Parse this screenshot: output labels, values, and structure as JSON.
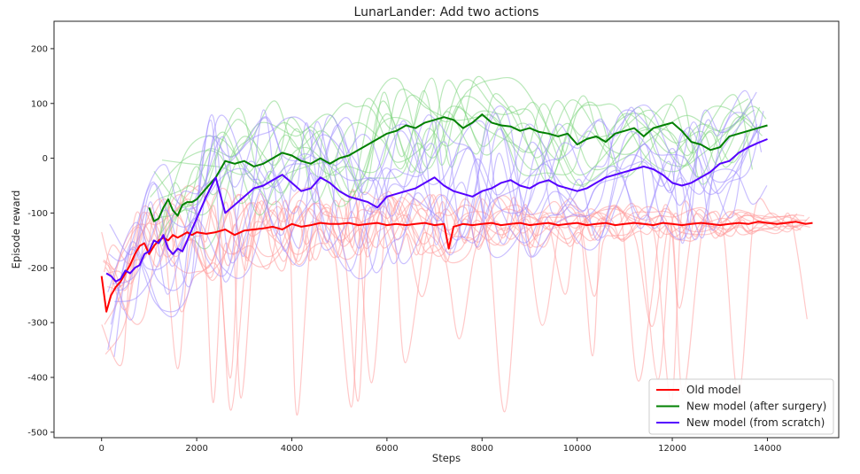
{
  "chart_data": {
    "type": "line",
    "title": "LunarLander: Add two actions",
    "xlabel": "Steps",
    "ylabel": "Episode reward",
    "xlim": [
      -1000,
      15500
    ],
    "ylim": [
      -510,
      250
    ],
    "xticks": [
      0,
      2000,
      4000,
      6000,
      8000,
      10000,
      12000,
      14000
    ],
    "yticks": [
      -500,
      -400,
      -300,
      -200,
      -100,
      0,
      100,
      200
    ],
    "grid": false,
    "legend_position": "bottom-right",
    "colors": {
      "old": "#ff0000",
      "surgery": "#008000",
      "scratch": "#5500ff",
      "old_faint": "#ff9a9a",
      "surgery_faint": "#7fd67f",
      "scratch_faint": "#9f8cff"
    },
    "series": [
      {
        "name": "Old model",
        "color": "#ff0000",
        "x": [
          0,
          100,
          200,
          300,
          400,
          500,
          600,
          700,
          800,
          900,
          1000,
          1100,
          1200,
          1300,
          1400,
          1500,
          1600,
          1700,
          1800,
          1900,
          2000,
          2200,
          2400,
          2600,
          2800,
          3000,
          3200,
          3400,
          3600,
          3800,
          4000,
          4200,
          4400,
          4600,
          4800,
          5000,
          5200,
          5400,
          5600,
          5800,
          6000,
          6200,
          6400,
          6600,
          6800,
          7000,
          7200,
          7300,
          7400,
          7600,
          7800,
          8000,
          8200,
          8400,
          8600,
          8800,
          9000,
          9200,
          9400,
          9600,
          9800,
          10000,
          10200,
          10400,
          10600,
          10800,
          11000,
          11200,
          11400,
          11600,
          11800,
          12000,
          12200,
          12400,
          12600,
          12800,
          13000,
          13200,
          13400,
          13600,
          13800,
          14000,
          14200,
          14400,
          14600,
          14800,
          14950
        ],
        "values": [
          -215,
          -280,
          -250,
          -235,
          -225,
          -210,
          -195,
          -175,
          -160,
          -155,
          -175,
          -160,
          -150,
          -145,
          -150,
          -140,
          -145,
          -140,
          -135,
          -140,
          -135,
          -138,
          -135,
          -130,
          -140,
          -132,
          -130,
          -128,
          -125,
          -130,
          -120,
          -125,
          -122,
          -118,
          -120,
          -120,
          -118,
          -122,
          -120,
          -118,
          -122,
          -120,
          -122,
          -120,
          -118,
          -122,
          -120,
          -165,
          -125,
          -120,
          -122,
          -120,
          -118,
          -122,
          -120,
          -118,
          -122,
          -120,
          -118,
          -122,
          -120,
          -118,
          -122,
          -120,
          -118,
          -122,
          -120,
          -118,
          -120,
          -122,
          -118,
          -120,
          -122,
          -120,
          -118,
          -120,
          -122,
          -120,
          -118,
          -120,
          -116,
          -118,
          -120,
          -118,
          -116,
          -120,
          -118
        ]
      },
      {
        "name": "New model (after surgery)",
        "color": "#008000",
        "x": [
          1000,
          1100,
          1200,
          1300,
          1400,
          1500,
          1600,
          1700,
          1800,
          1900,
          2000,
          2200,
          2400,
          2600,
          2800,
          3000,
          3200,
          3400,
          3600,
          3800,
          4000,
          4200,
          4400,
          4600,
          4800,
          5000,
          5200,
          5400,
          5600,
          5800,
          6000,
          6200,
          6400,
          6600,
          6800,
          7000,
          7200,
          7400,
          7600,
          7800,
          8000,
          8200,
          8400,
          8600,
          8800,
          9000,
          9200,
          9400,
          9600,
          9800,
          10000,
          10200,
          10400,
          10600,
          10800,
          11000,
          11200,
          11400,
          11600,
          11800,
          12000,
          12200,
          12400,
          12600,
          12800,
          13000,
          13200,
          13400,
          13600,
          13800,
          14000
        ],
        "values": [
          -90,
          -115,
          -110,
          -90,
          -75,
          -95,
          -105,
          -85,
          -80,
          -80,
          -75,
          -55,
          -35,
          -5,
          -10,
          -5,
          -15,
          -10,
          0,
          10,
          5,
          -5,
          -10,
          0,
          -10,
          0,
          5,
          15,
          25,
          35,
          45,
          50,
          60,
          55,
          65,
          70,
          75,
          70,
          55,
          65,
          80,
          65,
          60,
          58,
          50,
          55,
          48,
          45,
          40,
          45,
          25,
          35,
          40,
          30,
          45,
          50,
          55,
          40,
          55,
          60,
          65,
          50,
          30,
          25,
          15,
          20,
          40,
          45,
          50,
          55,
          60
        ]
      },
      {
        "name": "New model (from scratch)",
        "color": "#5500ff",
        "x": [
          100,
          200,
          300,
          400,
          500,
          600,
          700,
          800,
          900,
          1000,
          1100,
          1200,
          1300,
          1400,
          1500,
          1600,
          1700,
          1800,
          1900,
          2000,
          2200,
          2400,
          2600,
          2800,
          3000,
          3200,
          3400,
          3600,
          3800,
          4000,
          4200,
          4400,
          4600,
          4800,
          5000,
          5200,
          5400,
          5600,
          5800,
          6000,
          6200,
          6400,
          6600,
          6800,
          7000,
          7200,
          7400,
          7600,
          7800,
          8000,
          8200,
          8400,
          8600,
          8800,
          9000,
          9200,
          9400,
          9600,
          9800,
          10000,
          10200,
          10400,
          10600,
          10800,
          11000,
          11200,
          11400,
          11600,
          11800,
          12000,
          12200,
          12400,
          12600,
          12800,
          13000,
          13200,
          13400,
          13600,
          13800,
          14000
        ],
        "values": [
          -210,
          -215,
          -225,
          -220,
          -205,
          -210,
          -200,
          -195,
          -175,
          -170,
          -150,
          -155,
          -140,
          -165,
          -175,
          -165,
          -170,
          -150,
          -130,
          -110,
          -70,
          -35,
          -100,
          -85,
          -70,
          -55,
          -50,
          -40,
          -30,
          -45,
          -60,
          -55,
          -35,
          -45,
          -60,
          -70,
          -75,
          -80,
          -90,
          -70,
          -65,
          -60,
          -55,
          -45,
          -35,
          -50,
          -60,
          -65,
          -70,
          -60,
          -55,
          -45,
          -40,
          -50,
          -55,
          -45,
          -40,
          -50,
          -55,
          -60,
          -55,
          -45,
          -35,
          -30,
          -25,
          -20,
          -15,
          -20,
          -30,
          -45,
          -50,
          -45,
          -35,
          -25,
          -10,
          -5,
          10,
          20,
          28,
          35
        ]
      }
    ],
    "legend": [
      "Old model",
      "New model (after surgery)",
      "New model (from scratch)"
    ]
  }
}
